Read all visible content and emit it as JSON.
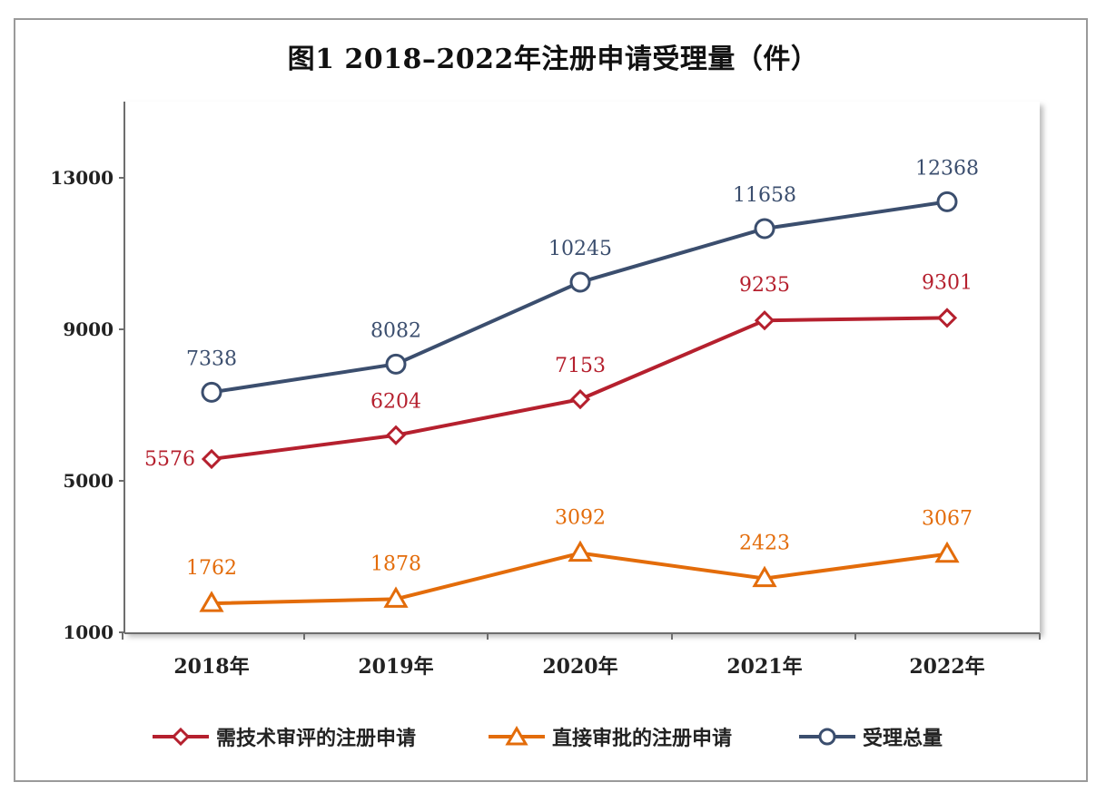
{
  "chart_data": {
    "type": "line",
    "title": "图1  2018–2022年注册申请受理量（件）",
    "categories": [
      "2018年",
      "2019年",
      "2020年",
      "2021年",
      "2022年"
    ],
    "ylim": [
      1000,
      15000
    ],
    "yticks": [
      1000,
      5000,
      9000,
      13000
    ],
    "ytick_labels": [
      "1000",
      "5000",
      "9000",
      "13000"
    ],
    "grid": false,
    "legend_position": "bottom",
    "series": [
      {
        "name": "需技术审评的注册申请",
        "values": [
          5576,
          6204,
          7153,
          9235,
          9301
        ],
        "labels": [
          "5576",
          "6204",
          "7153",
          "9235",
          "9301"
        ],
        "color": "#b5202e",
        "marker": "diamond"
      },
      {
        "name": "直接审批的注册申请",
        "values": [
          1762,
          1878,
          3092,
          2423,
          3067
        ],
        "labels": [
          "1762",
          "1878",
          "3092",
          "2423",
          "3067"
        ],
        "color": "#e36c0a",
        "marker": "triangle"
      },
      {
        "name": "受理总量",
        "values": [
          7338,
          8082,
          10245,
          11658,
          12368
        ],
        "labels": [
          "7338",
          "8082",
          "10245",
          "11658",
          "12368"
        ],
        "color": "#3b4e6e",
        "marker": "circle"
      }
    ]
  }
}
